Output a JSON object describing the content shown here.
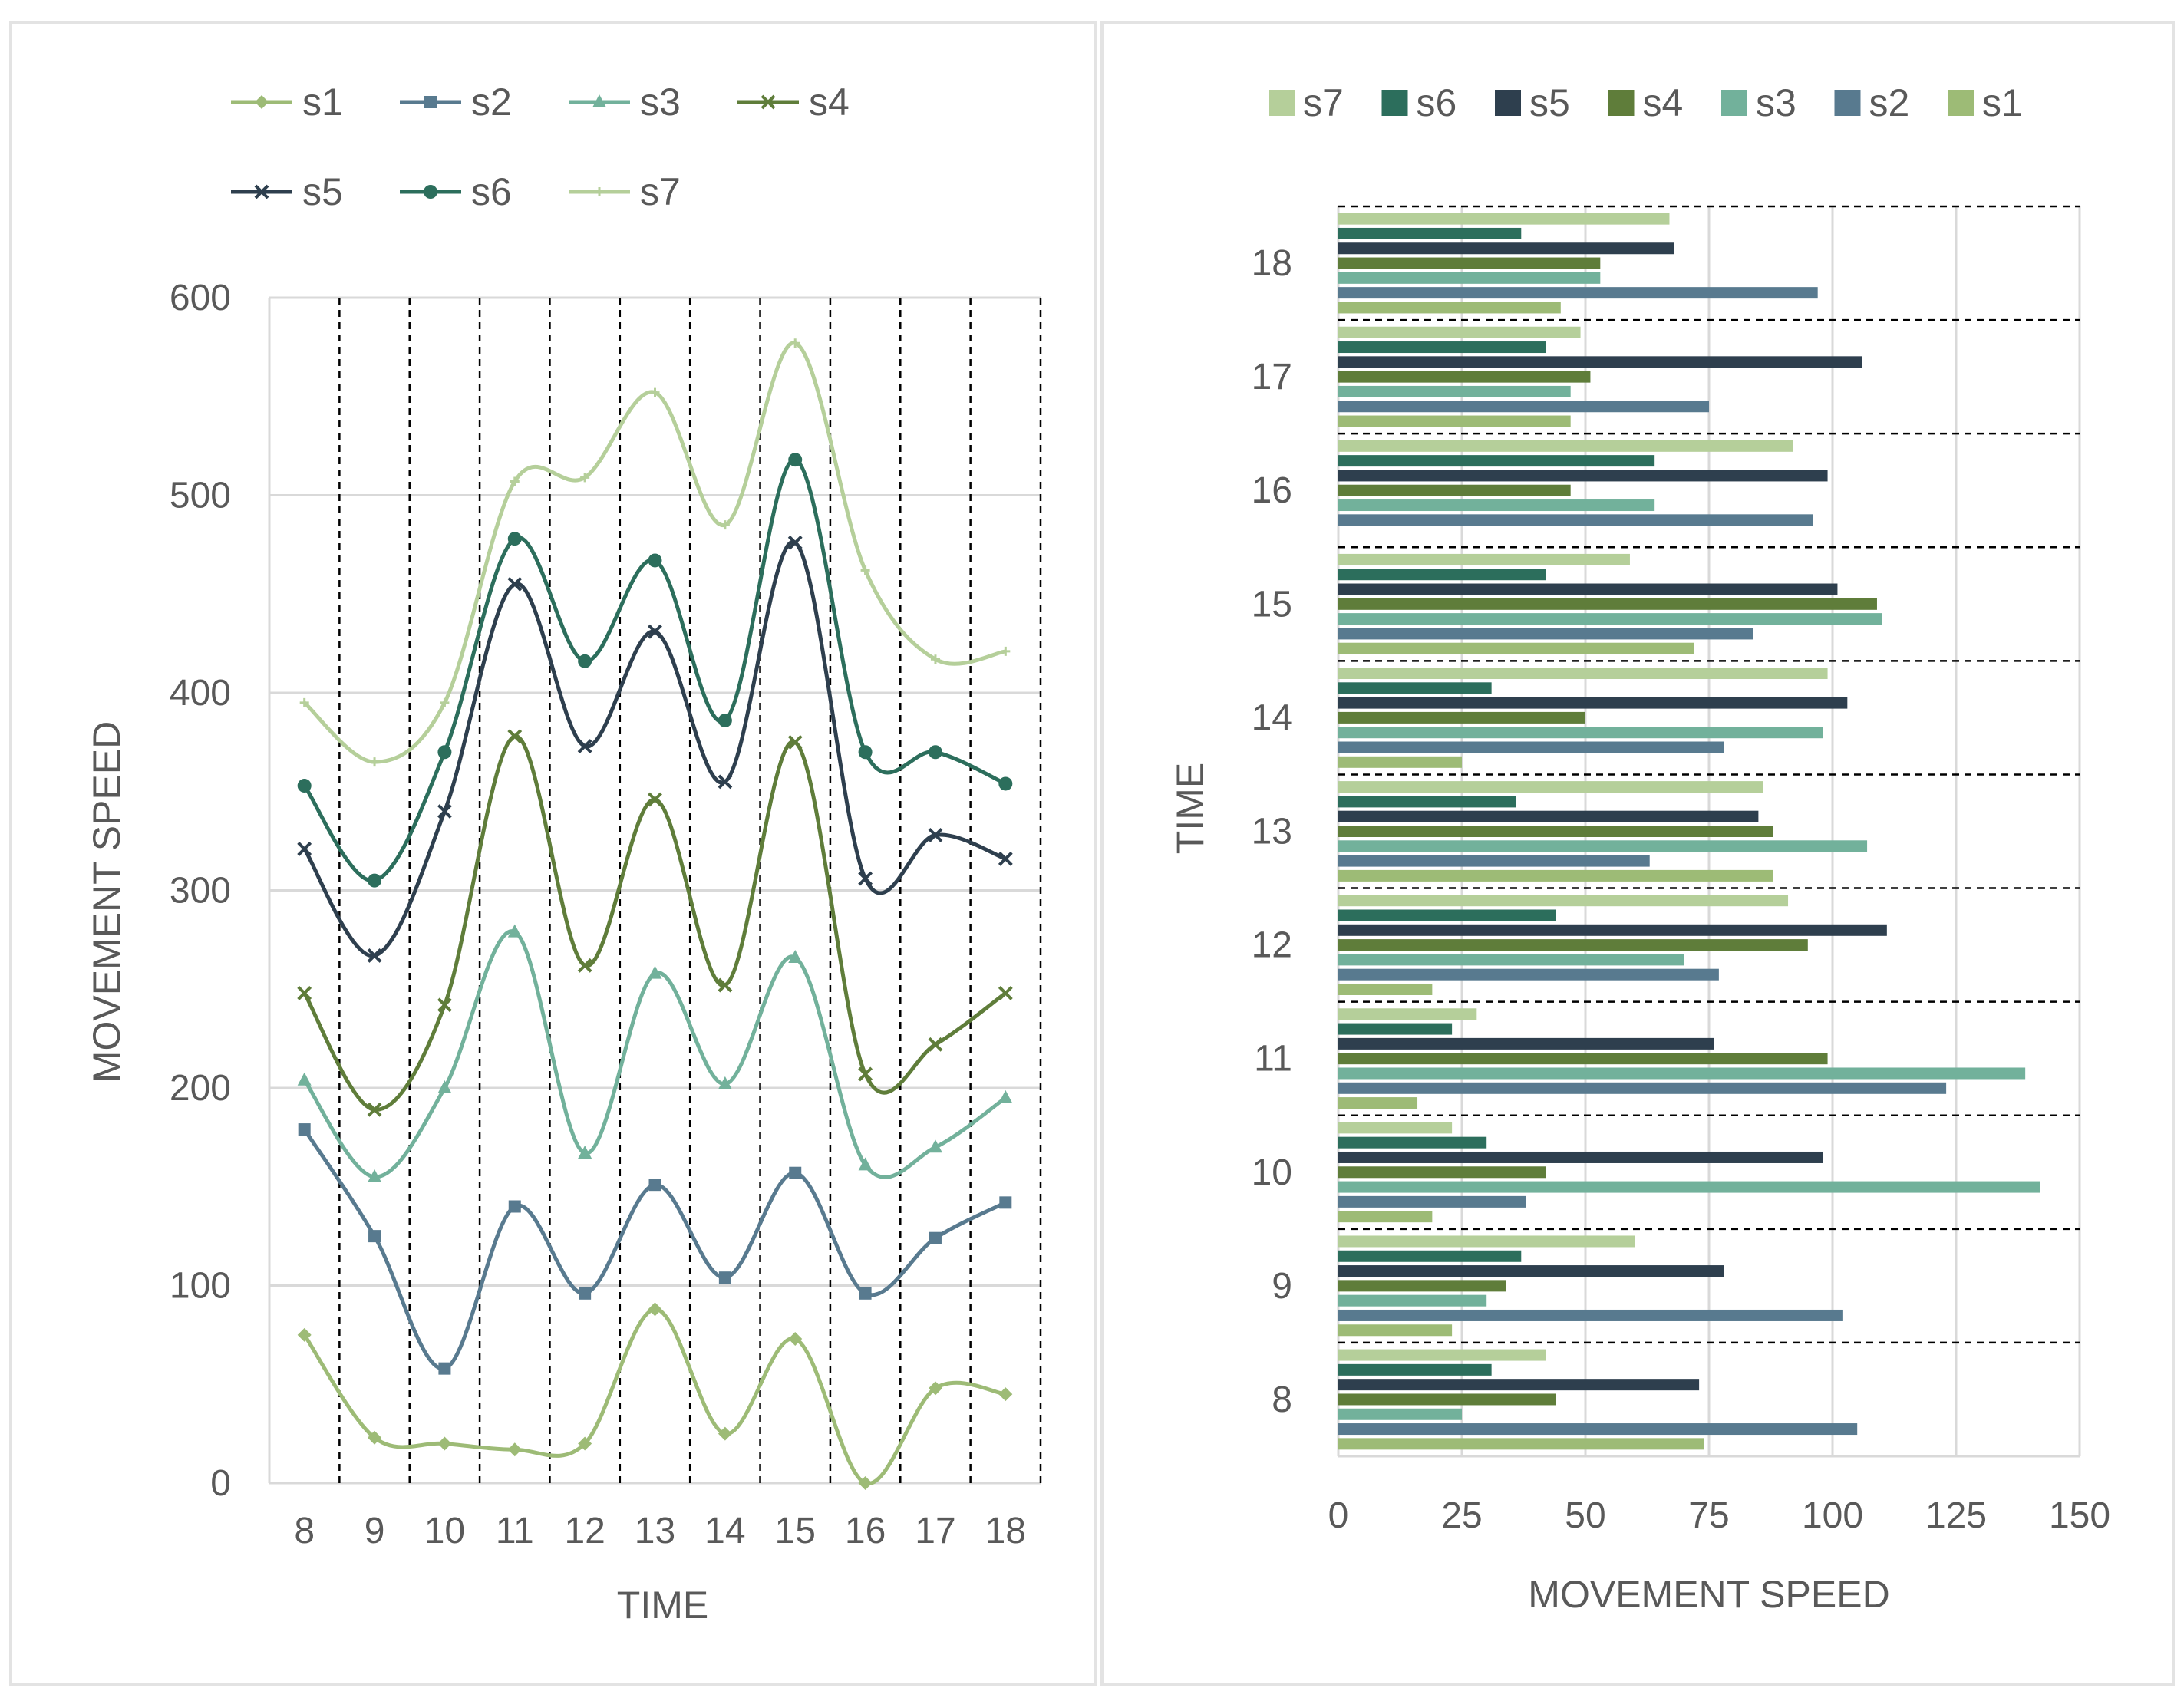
{
  "colors": {
    "s1": "#9dbb76",
    "s2": "#587a8f",
    "s3": "#72b19b",
    "s4": "#5f7d3a",
    "s5": "#2e3f4e",
    "s6": "#2c6e5c",
    "s7": "#b5cf9a"
  },
  "chart_data": [
    {
      "type": "line",
      "xlabel": "TIME",
      "ylabel": "MOVEMENT SPEED",
      "x": [
        8,
        9,
        10,
        11,
        12,
        13,
        14,
        15,
        16,
        17,
        18
      ],
      "ylim": [
        0,
        600
      ],
      "yticks": [
        0,
        100,
        200,
        300,
        400,
        500,
        600
      ],
      "stacked": true,
      "legend": "top",
      "series": [
        {
          "name": "s1",
          "values": [
            75,
            23,
            20,
            17,
            20,
            88,
            25,
            73,
            0,
            48,
            45
          ]
        },
        {
          "name": "s2",
          "values": [
            179,
            125,
            58,
            140,
            96,
            151,
            104,
            157,
            96,
            124,
            142
          ]
        },
        {
          "name": "s3",
          "values": [
            204,
            155,
            200,
            279,
            167,
            258,
            202,
            266,
            161,
            170,
            195
          ]
        },
        {
          "name": "s4",
          "values": [
            248,
            189,
            242,
            378,
            262,
            346,
            252,
            375,
            207,
            222,
            248
          ]
        },
        {
          "name": "s5",
          "values": [
            321,
            267,
            340,
            455,
            373,
            431,
            355,
            476,
            306,
            328,
            316
          ]
        },
        {
          "name": "s6",
          "values": [
            353,
            305,
            370,
            478,
            416,
            467,
            386,
            518,
            370,
            370,
            354
          ]
        },
        {
          "name": "s7",
          "values": [
            395,
            365,
            395,
            507,
            509,
            552,
            485,
            577,
            462,
            417,
            421
          ]
        }
      ]
    },
    {
      "type": "bar",
      "orientation": "horizontal",
      "xlabel": "MOVEMENT SPEED",
      "ylabel": "TIME",
      "categories": [
        "8",
        "9",
        "10",
        "11",
        "12",
        "13",
        "14",
        "15",
        "16",
        "17",
        "18"
      ],
      "xlim": [
        0,
        150
      ],
      "xticks": [
        0,
        25,
        50,
        75,
        100,
        125,
        150
      ],
      "legend": "top",
      "legend_order": [
        "s7",
        "s6",
        "s5",
        "s4",
        "s3",
        "s2",
        "s1"
      ],
      "series": [
        {
          "name": "s1",
          "values": [
            74,
            23,
            19,
            16,
            19,
            88,
            25,
            72,
            0,
            47,
            45
          ]
        },
        {
          "name": "s2",
          "values": [
            105,
            102,
            38,
            123,
            77,
            63,
            78,
            84,
            96,
            75,
            97
          ]
        },
        {
          "name": "s3",
          "values": [
            25,
            30,
            142,
            139,
            70,
            107,
            98,
            110,
            64,
            47,
            53
          ]
        },
        {
          "name": "s4",
          "values": [
            44,
            34,
            42,
            99,
            95,
            88,
            50,
            109,
            47,
            51,
            53
          ]
        },
        {
          "name": "s5",
          "values": [
            73,
            78,
            98,
            76,
            111,
            85,
            103,
            101,
            99,
            106,
            68
          ]
        },
        {
          "name": "s6",
          "values": [
            31,
            37,
            30,
            23,
            44,
            36,
            31,
            42,
            64,
            42,
            37
          ]
        },
        {
          "name": "s7",
          "values": [
            42,
            60,
            23,
            28,
            91,
            86,
            99,
            59,
            92,
            49,
            67
          ]
        }
      ]
    }
  ]
}
